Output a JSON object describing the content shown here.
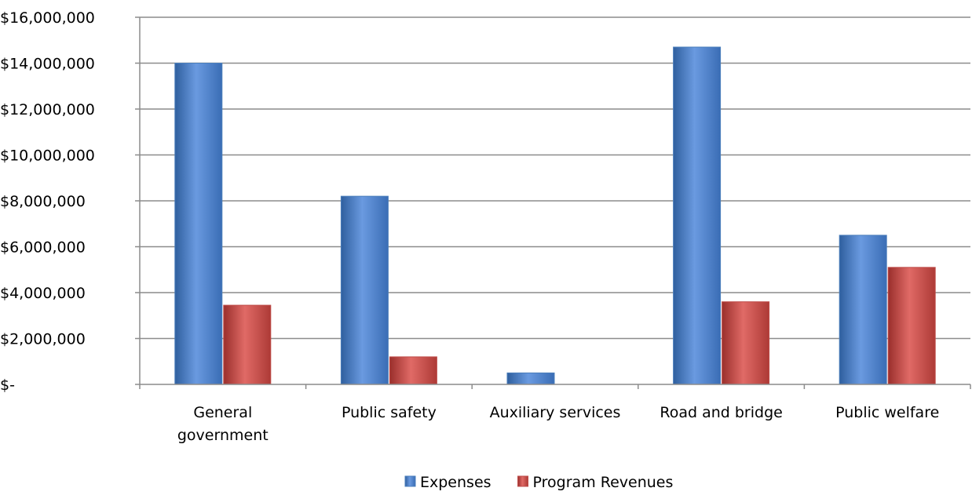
{
  "chart_data": {
    "type": "bar",
    "categories": [
      [
        "General",
        "government"
      ],
      [
        "Public safety"
      ],
      [
        "Auxiliary services"
      ],
      [
        "Road and bridge"
      ],
      [
        "Public welfare"
      ]
    ],
    "series": [
      {
        "name": "Expenses",
        "color": "#4a7ebb",
        "values": [
          14000000,
          8200000,
          500000,
          14700000,
          6500000
        ]
      },
      {
        "name": "Program Revenues",
        "color": "#be4b48",
        "values": [
          3450000,
          1200000,
          0,
          3600000,
          5100000
        ]
      }
    ],
    "yticks": [
      "$-",
      "$2,000,000",
      "$4,000,000",
      "$6,000,000",
      "$8,000,000",
      "$10,000,000",
      "$12,000,000",
      "$14,000,000",
      "$16,000,000"
    ],
    "ylim": [
      0,
      16000000
    ],
    "ystep": 2000000,
    "grid": true,
    "legend_position": "bottom"
  }
}
